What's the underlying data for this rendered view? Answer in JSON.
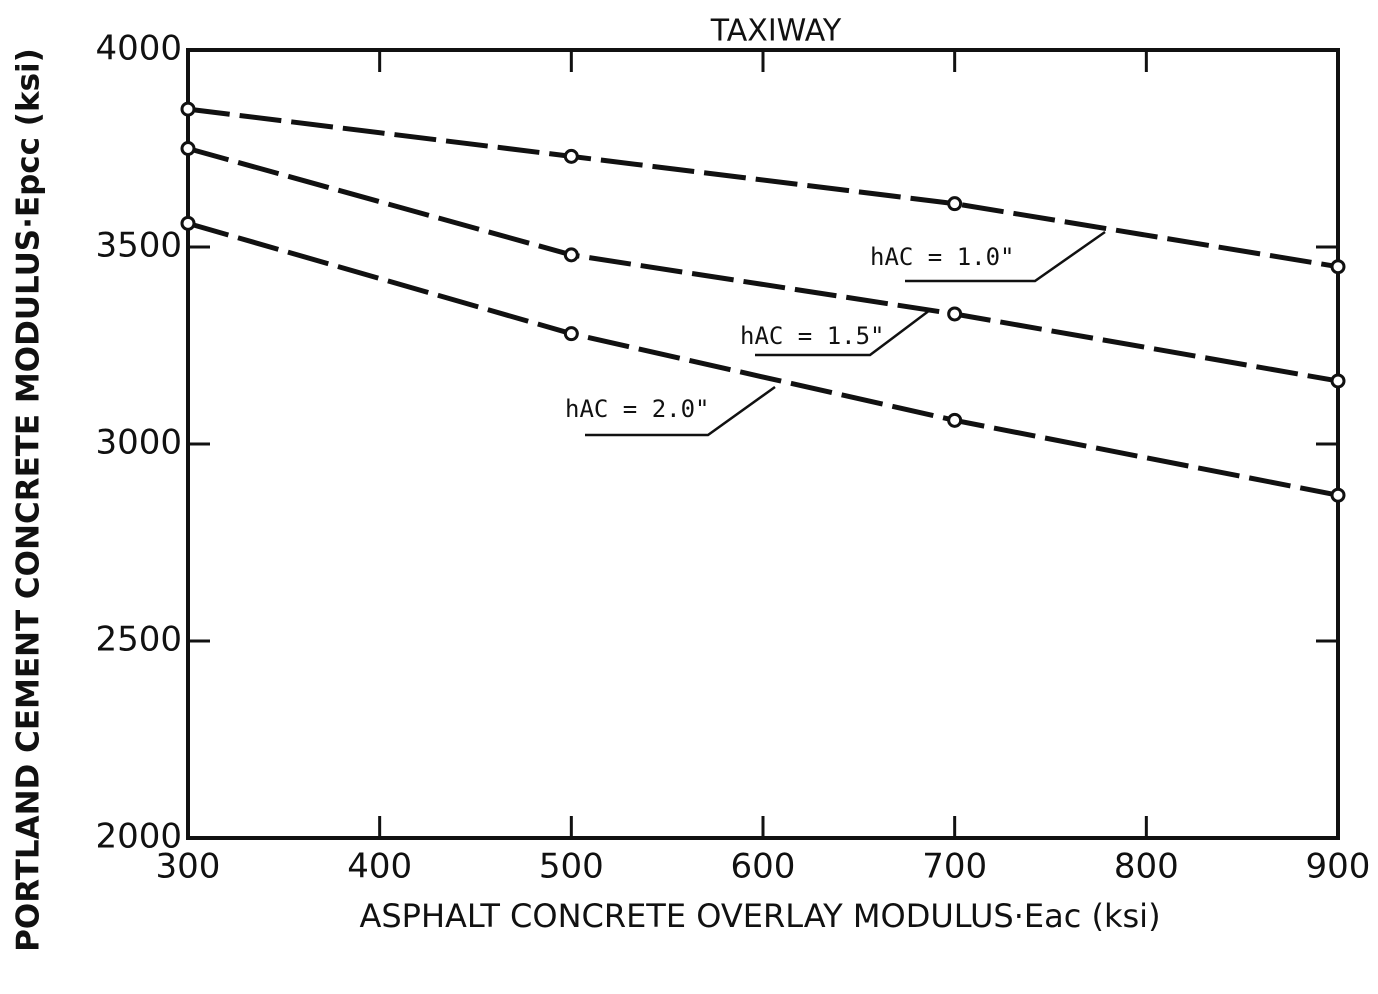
{
  "chart_data": {
    "type": "line",
    "title": "TAXIWAY",
    "x_label": "ASPHALT CONCRETE OVERLAY MODULUS·Eac (ksi)",
    "y_label": "PORTLAND CEMENT CONCRETE MODULUS·Epcc (ksi)",
    "x": [
      300,
      500,
      700,
      900
    ],
    "series": [
      {
        "name": "hAC = 1.0\"",
        "color": "#111111",
        "values": [
          3850,
          3730,
          3610,
          3450
        ]
      },
      {
        "name": "hAC = 1.5\"",
        "color": "#111111",
        "values": [
          3750,
          3480,
          3330,
          3160
        ]
      },
      {
        "name": "hAC = 2.0\"",
        "color": "#111111",
        "values": [
          3560,
          3280,
          3060,
          2870
        ]
      }
    ],
    "xlim": [
      300,
      900
    ],
    "xticks": [
      300,
      400,
      500,
      600,
      700,
      800,
      900
    ],
    "ylim": [
      2000,
      4000
    ],
    "yticks": [
      2000,
      2500,
      3000,
      3500,
      4000
    ],
    "grid": false
  }
}
